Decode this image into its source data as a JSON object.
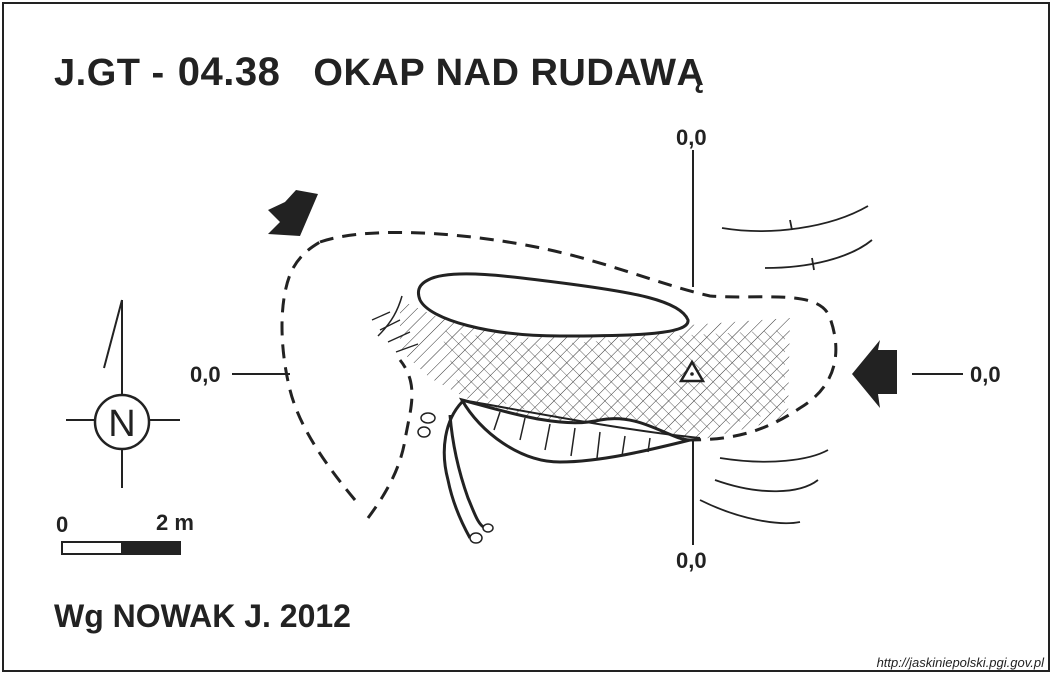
{
  "title": {
    "code_prefix": "J.GT -",
    "code_number": "04.38",
    "name": "OKAP NAD RUDAWĄ"
  },
  "author_line": "Wg NOWAK J. 2012",
  "source_url": "http://jaskiniepolski.pgi.gov.pl",
  "section_labels": {
    "top": "0,0",
    "bottom": "0,0",
    "left": "0,0",
    "right": "0,0"
  },
  "north_arrow": {
    "letter": "N"
  },
  "scale_bar": {
    "start_label": "0",
    "end_label": "2 m"
  },
  "colors": {
    "ink": "#222222",
    "paper": "#ffffff"
  }
}
